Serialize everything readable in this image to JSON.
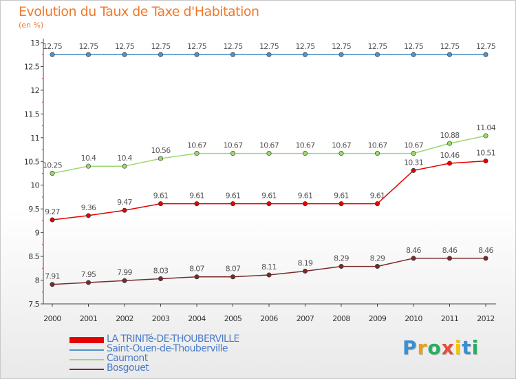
{
  "title": "Evolution du Taux de Taxe d'Habitation",
  "subtitle": "(en %)",
  "chart_data": {
    "type": "line",
    "title": "Evolution du Taux de Taxe d'Habitation",
    "ylabel": "(en %)",
    "xlabel": "",
    "x": [
      "2000",
      "2001",
      "2002",
      "2003",
      "2004",
      "2005",
      "2006",
      "2007",
      "2008",
      "2009",
      "2010",
      "2011",
      "2012"
    ],
    "ylim": [
      7.5,
      13
    ],
    "yticks": [
      7.5,
      8,
      8.5,
      9,
      9.5,
      10,
      10.5,
      11,
      11.5,
      12,
      12.5,
      13
    ],
    "ytick_labels": [
      "7.5",
      "8",
      "8.5",
      "9",
      "9.5",
      "10",
      "10.5",
      "11",
      "11.5",
      "12",
      "12.5",
      "13"
    ],
    "grid": false,
    "legend_position": "bottom-left",
    "series": [
      {
        "name": "Saint-Ouen-de-Thouberville",
        "color": "#4f93c8",
        "values": [
          12.75,
          12.75,
          12.75,
          12.75,
          12.75,
          12.75,
          12.75,
          12.75,
          12.75,
          12.75,
          12.75,
          12.75,
          12.75
        ],
        "labels": [
          "12.75",
          "12.75",
          "12.75",
          "12.75",
          "12.75",
          "12.75",
          "12.75",
          "12.75",
          "12.75",
          "12.75",
          "12.75",
          "12.75",
          "12.75"
        ]
      },
      {
        "name": "Caumont",
        "color": "#9bd86e",
        "values": [
          10.25,
          10.4,
          10.4,
          10.56,
          10.67,
          10.67,
          10.67,
          10.67,
          10.67,
          10.67,
          10.67,
          10.88,
          11.04
        ],
        "labels": [
          "10.25",
          "10.4",
          "10.4",
          "10.56",
          "10.67",
          "10.67",
          "10.67",
          "10.67",
          "10.67",
          "10.67",
          "10.67",
          "10.88",
          "11.04"
        ]
      },
      {
        "name": "LA TRINITé-DE-THOUBERVILLE",
        "color": "#e60000",
        "values": [
          9.27,
          9.36,
          9.47,
          9.61,
          9.61,
          9.61,
          9.61,
          9.61,
          9.61,
          9.61,
          10.31,
          10.46,
          10.51
        ],
        "labels": [
          "9.27",
          "9.36",
          "9.47",
          "9.61",
          "9.61",
          "9.61",
          "9.61",
          "9.61",
          "9.61",
          "9.61",
          "10.31",
          "10.46",
          "10.51"
        ]
      },
      {
        "name": "Bosgouet",
        "color": "#7a2a2a",
        "values": [
          7.91,
          7.95,
          7.99,
          8.03,
          8.07,
          8.07,
          8.11,
          8.19,
          8.29,
          8.29,
          8.46,
          8.46,
          8.46
        ],
        "labels": [
          "7.91",
          "7.95",
          "7.99",
          "8.03",
          "8.07",
          "8.07",
          "8.11",
          "8.19",
          "8.29",
          "8.29",
          "8.46",
          "8.46",
          "8.46"
        ]
      }
    ]
  },
  "legend": [
    {
      "label": "LA TRINITé-DE-THOUBERVILLE",
      "color": "#e60000"
    },
    {
      "label": "Saint-Ouen-de-Thouberville",
      "color": "#4f93c8"
    },
    {
      "label": "Caumont",
      "color": "#9bd86e"
    },
    {
      "label": "Bosgouet",
      "color": "#7a2a2a"
    }
  ],
  "logo": {
    "letters": [
      "P",
      "r",
      "o",
      "x",
      "i",
      "t",
      "i"
    ],
    "colors": [
      "#3a8fd0",
      "#f39c12",
      "#27ae60",
      "#e74c3c",
      "#f1c40f",
      "#3a8fd0",
      "#27ae60"
    ]
  }
}
